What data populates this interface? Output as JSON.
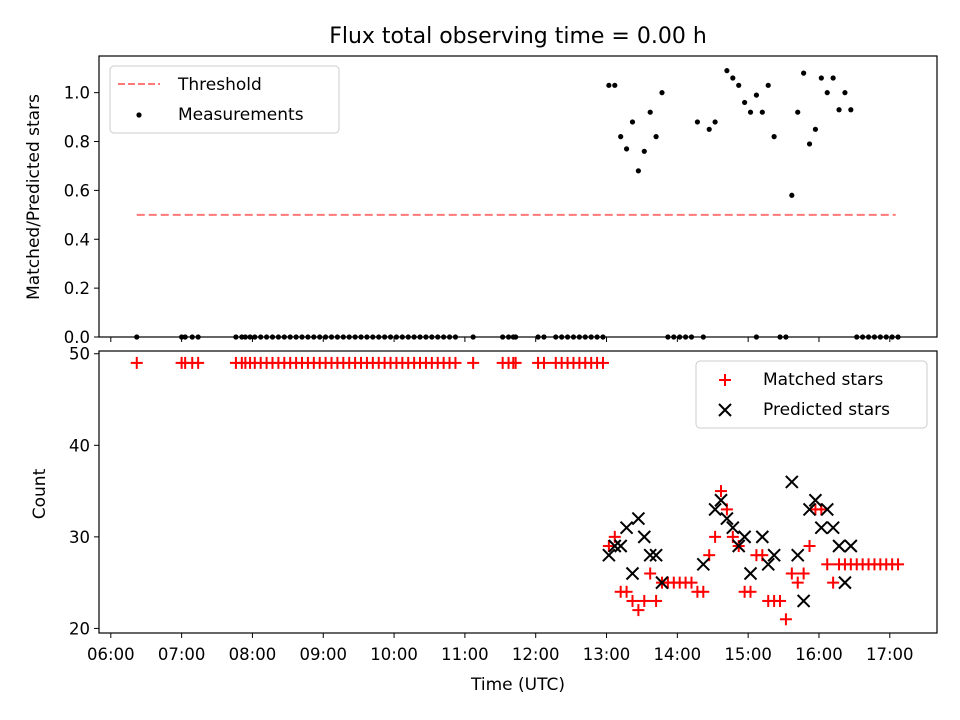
{
  "chart_data": [
    {
      "type": "scatter",
      "title": "Flux total observing time = 0.00 h",
      "xlabel": "",
      "ylabel": "Matched/Predicted stars",
      "xlim": [
        "05:50",
        "17:40"
      ],
      "ylim": [
        0,
        1.15
      ],
      "yticks": [
        "0.0",
        "0.2",
        "0.4",
        "0.6",
        "0.8",
        "1.0"
      ],
      "legend": {
        "position": "top-left",
        "entries": [
          "Threshold",
          "Measurements"
        ]
      },
      "threshold": {
        "name": "Threshold",
        "y": 0.5,
        "x_range": [
          "06:22",
          "17:05"
        ],
        "color": "#ff7777"
      },
      "series": [
        {
          "name": "Measurements",
          "color": "#000000",
          "points": [
            [
              "06:22",
              0
            ],
            [
              "07:00",
              0
            ],
            [
              "07:03",
              0
            ],
            [
              "07:09",
              0
            ],
            [
              "07:14",
              0
            ],
            [
              "07:46",
              0
            ],
            [
              "07:51",
              0
            ],
            [
              "07:54",
              0
            ],
            [
              "07:58",
              0
            ],
            [
              "08:02",
              0
            ],
            [
              "08:07",
              0
            ],
            [
              "08:12",
              0
            ],
            [
              "08:17",
              0
            ],
            [
              "08:22",
              0
            ],
            [
              "08:27",
              0
            ],
            [
              "08:32",
              0
            ],
            [
              "08:37",
              0
            ],
            [
              "08:42",
              0
            ],
            [
              "08:47",
              0
            ],
            [
              "08:52",
              0
            ],
            [
              "08:57",
              0
            ],
            [
              "09:02",
              0
            ],
            [
              "09:07",
              0
            ],
            [
              "09:12",
              0
            ],
            [
              "09:17",
              0
            ],
            [
              "09:22",
              0
            ],
            [
              "09:27",
              0
            ],
            [
              "09:32",
              0
            ],
            [
              "09:37",
              0
            ],
            [
              "09:42",
              0
            ],
            [
              "09:47",
              0
            ],
            [
              "09:52",
              0
            ],
            [
              "09:57",
              0
            ],
            [
              "10:02",
              0
            ],
            [
              "10:07",
              0
            ],
            [
              "10:12",
              0
            ],
            [
              "10:17",
              0
            ],
            [
              "10:22",
              0
            ],
            [
              "10:27",
              0
            ],
            [
              "10:32",
              0
            ],
            [
              "10:37",
              0
            ],
            [
              "10:42",
              0
            ],
            [
              "10:47",
              0
            ],
            [
              "10:52",
              0
            ],
            [
              "11:07",
              0
            ],
            [
              "11:32",
              0
            ],
            [
              "11:37",
              0
            ],
            [
              "11:41",
              0
            ],
            [
              "11:43",
              0
            ],
            [
              "12:02",
              0
            ],
            [
              "12:07",
              0
            ],
            [
              "12:17",
              0
            ],
            [
              "12:22",
              0
            ],
            [
              "12:27",
              0
            ],
            [
              "12:32",
              0
            ],
            [
              "12:37",
              0
            ],
            [
              "12:42",
              0
            ],
            [
              "12:47",
              0
            ],
            [
              "12:52",
              0
            ],
            [
              "12:57",
              0
            ],
            [
              "13:02",
              1.03
            ],
            [
              "13:07",
              1.03
            ],
            [
              "13:12",
              0.82
            ],
            [
              "13:17",
              0.77
            ],
            [
              "13:22",
              0.88
            ],
            [
              "13:27",
              0.68
            ],
            [
              "13:32",
              0.76
            ],
            [
              "13:37",
              0.92
            ],
            [
              "13:42",
              0.82
            ],
            [
              "13:47",
              1.0
            ],
            [
              "13:52",
              0
            ],
            [
              "13:57",
              0
            ],
            [
              "14:02",
              0
            ],
            [
              "14:07",
              0
            ],
            [
              "14:12",
              0
            ],
            [
              "14:22",
              0
            ],
            [
              "14:17",
              0.88
            ],
            [
              "14:27",
              0.85
            ],
            [
              "14:32",
              0.88
            ],
            [
              "14:42",
              1.09
            ],
            [
              "14:47",
              1.06
            ],
            [
              "14:52",
              1.03
            ],
            [
              "14:57",
              0.96
            ],
            [
              "15:02",
              0.92
            ],
            [
              "15:07",
              0.99
            ],
            [
              "15:12",
              0.92
            ],
            [
              "15:17",
              1.03
            ],
            [
              "15:22",
              0.82
            ],
            [
              "15:07",
              0
            ],
            [
              "15:27",
              0
            ],
            [
              "15:32",
              0
            ],
            [
              "15:37",
              0.58
            ],
            [
              "15:42",
              0.92
            ],
            [
              "15:47",
              1.08
            ],
            [
              "15:52",
              0.79
            ],
            [
              "15:57",
              0.85
            ],
            [
              "16:02",
              1.06
            ],
            [
              "16:07",
              1.0
            ],
            [
              "16:12",
              1.06
            ],
            [
              "16:17",
              0.93
            ],
            [
              "16:22",
              1.0
            ],
            [
              "16:27",
              0.93
            ],
            [
              "16:32",
              0
            ],
            [
              "16:37",
              0
            ],
            [
              "16:42",
              0
            ],
            [
              "16:47",
              0
            ],
            [
              "16:52",
              0
            ],
            [
              "16:57",
              0
            ],
            [
              "17:02",
              0
            ],
            [
              "17:07",
              0
            ]
          ]
        }
      ]
    },
    {
      "type": "scatter",
      "title": "",
      "xlabel": "Time (UTC)",
      "ylabel": "Count",
      "xlim": [
        "05:50",
        "17:40"
      ],
      "ylim": [
        19.5,
        50.3
      ],
      "yticks": [
        "20",
        "30",
        "40",
        "50"
      ],
      "xticks": [
        "06:00",
        "07:00",
        "08:00",
        "09:00",
        "10:00",
        "11:00",
        "12:00",
        "13:00",
        "14:00",
        "15:00",
        "16:00",
        "17:00"
      ],
      "legend": {
        "position": "top-right",
        "entries": [
          "Matched stars",
          "Predicted stars"
        ]
      },
      "series": [
        {
          "name": "Matched stars",
          "marker": "+",
          "color": "#ff0000",
          "points": [
            [
              "06:22",
              49
            ],
            [
              "07:00",
              49
            ],
            [
              "07:03",
              49
            ],
            [
              "07:09",
              49
            ],
            [
              "07:14",
              49
            ],
            [
              "07:46",
              49
            ],
            [
              "07:51",
              49
            ],
            [
              "07:54",
              49
            ],
            [
              "07:58",
              49
            ],
            [
              "08:02",
              49
            ],
            [
              "08:07",
              49
            ],
            [
              "08:12",
              49
            ],
            [
              "08:17",
              49
            ],
            [
              "08:22",
              49
            ],
            [
              "08:27",
              49
            ],
            [
              "08:32",
              49
            ],
            [
              "08:37",
              49
            ],
            [
              "08:42",
              49
            ],
            [
              "08:47",
              49
            ],
            [
              "08:52",
              49
            ],
            [
              "08:57",
              49
            ],
            [
              "09:02",
              49
            ],
            [
              "09:07",
              49
            ],
            [
              "09:12",
              49
            ],
            [
              "09:17",
              49
            ],
            [
              "09:22",
              49
            ],
            [
              "09:27",
              49
            ],
            [
              "09:32",
              49
            ],
            [
              "09:37",
              49
            ],
            [
              "09:42",
              49
            ],
            [
              "09:47",
              49
            ],
            [
              "09:52",
              49
            ],
            [
              "09:57",
              49
            ],
            [
              "10:02",
              49
            ],
            [
              "10:07",
              49
            ],
            [
              "10:12",
              49
            ],
            [
              "10:17",
              49
            ],
            [
              "10:22",
              49
            ],
            [
              "10:27",
              49
            ],
            [
              "10:32",
              49
            ],
            [
              "10:37",
              49
            ],
            [
              "10:42",
              49
            ],
            [
              "10:47",
              49
            ],
            [
              "10:52",
              49
            ],
            [
              "11:07",
              49
            ],
            [
              "11:32",
              49
            ],
            [
              "11:37",
              49
            ],
            [
              "11:41",
              49
            ],
            [
              "11:43",
              49
            ],
            [
              "12:02",
              49
            ],
            [
              "12:07",
              49
            ],
            [
              "12:17",
              49
            ],
            [
              "12:22",
              49
            ],
            [
              "12:27",
              49
            ],
            [
              "12:32",
              49
            ],
            [
              "12:37",
              49
            ],
            [
              "12:42",
              49
            ],
            [
              "12:47",
              49
            ],
            [
              "12:52",
              49
            ],
            [
              "12:57",
              49
            ],
            [
              "13:02",
              29
            ],
            [
              "13:07",
              30
            ],
            [
              "13:12",
              24
            ],
            [
              "13:17",
              24
            ],
            [
              "13:22",
              23
            ],
            [
              "13:27",
              22
            ],
            [
              "13:32",
              23
            ],
            [
              "13:37",
              26
            ],
            [
              "13:42",
              23
            ],
            [
              "13:47",
              25
            ],
            [
              "13:52",
              25
            ],
            [
              "13:57",
              25
            ],
            [
              "14:02",
              25
            ],
            [
              "14:07",
              25
            ],
            [
              "14:12",
              25
            ],
            [
              "14:17",
              24
            ],
            [
              "14:22",
              24
            ],
            [
              "14:27",
              28
            ],
            [
              "14:32",
              30
            ],
            [
              "14:37",
              35
            ],
            [
              "14:42",
              33
            ],
            [
              "14:47",
              30
            ],
            [
              "14:52",
              29
            ],
            [
              "14:57",
              24
            ],
            [
              "15:02",
              24
            ],
            [
              "15:07",
              28
            ],
            [
              "15:12",
              28
            ],
            [
              "15:17",
              23
            ],
            [
              "15:22",
              23
            ],
            [
              "15:27",
              23
            ],
            [
              "15:32",
              21
            ],
            [
              "15:37",
              26
            ],
            [
              "15:42",
              25
            ],
            [
              "15:47",
              26
            ],
            [
              "15:52",
              29
            ],
            [
              "15:57",
              33
            ],
            [
              "16:02",
              33
            ],
            [
              "16:07",
              27
            ],
            [
              "16:12",
              25
            ],
            [
              "16:17",
              27
            ],
            [
              "16:22",
              27
            ],
            [
              "16:27",
              27
            ],
            [
              "16:32",
              27
            ],
            [
              "16:37",
              27
            ],
            [
              "16:42",
              27
            ],
            [
              "16:47",
              27
            ],
            [
              "16:52",
              27
            ],
            [
              "16:57",
              27
            ],
            [
              "17:02",
              27
            ],
            [
              "17:07",
              27
            ]
          ]
        },
        {
          "name": "Predicted stars",
          "marker": "x",
          "color": "#000000",
          "points": [
            [
              "13:02",
              28
            ],
            [
              "13:07",
              29
            ],
            [
              "13:12",
              29
            ],
            [
              "13:17",
              31
            ],
            [
              "13:22",
              26
            ],
            [
              "13:27",
              32
            ],
            [
              "13:32",
              30
            ],
            [
              "13:37",
              28
            ],
            [
              "13:42",
              28
            ],
            [
              "13:47",
              25
            ],
            [
              "14:22",
              27
            ],
            [
              "14:32",
              33
            ],
            [
              "14:37",
              34
            ],
            [
              "14:42",
              32
            ],
            [
              "14:47",
              31
            ],
            [
              "14:52",
              29
            ],
            [
              "14:57",
              30
            ],
            [
              "15:02",
              26
            ],
            [
              "15:12",
              30
            ],
            [
              "15:17",
              27
            ],
            [
              "15:22",
              28
            ],
            [
              "15:37",
              36
            ],
            [
              "15:42",
              28
            ],
            [
              "15:47",
              23
            ],
            [
              "15:52",
              33
            ],
            [
              "15:57",
              34
            ],
            [
              "16:02",
              31
            ],
            [
              "16:07",
              33
            ],
            [
              "16:12",
              31
            ],
            [
              "16:17",
              29
            ],
            [
              "16:22",
              25
            ],
            [
              "16:27",
              29
            ]
          ]
        }
      ]
    }
  ]
}
